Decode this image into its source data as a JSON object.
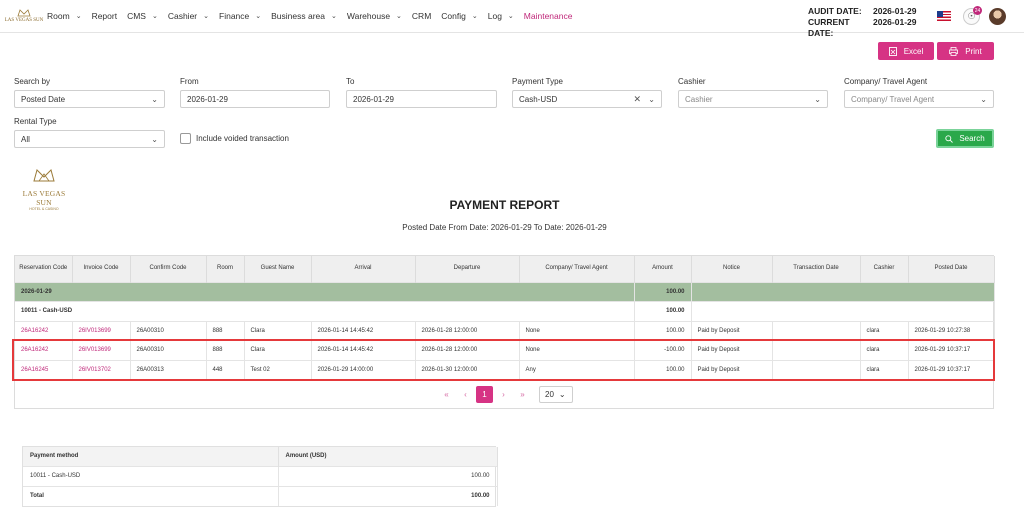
{
  "brand": {
    "logo_text": "LAS VEGAS SUN",
    "logo_sub": "HOTEL & CASINO"
  },
  "nav": [
    {
      "label": "Room",
      "dropdown": true
    },
    {
      "label": "Report",
      "dropdown": false
    },
    {
      "label": "CMS",
      "dropdown": true
    },
    {
      "label": "Cashier",
      "dropdown": true
    },
    {
      "label": "Finance",
      "dropdown": true
    },
    {
      "label": "Business area",
      "dropdown": true
    },
    {
      "label": "Warehouse",
      "dropdown": true
    },
    {
      "label": "CRM",
      "dropdown": false
    },
    {
      "label": "Config",
      "dropdown": true
    },
    {
      "label": "Log",
      "dropdown": true
    },
    {
      "label": "Maintenance",
      "dropdown": false,
      "active": true
    }
  ],
  "audit": {
    "audit_label": "AUDIT DATE:",
    "audit_value": "2026-01-29",
    "current_label": "CURRENT DATE:",
    "current_value": "2026-01-29"
  },
  "notifications": {
    "count": "24"
  },
  "actions": {
    "excel": "Excel",
    "print": "Print"
  },
  "filters": {
    "search_by": {
      "label": "Search by",
      "value": "Posted Date"
    },
    "from": {
      "label": "From",
      "value": "2026-01-29"
    },
    "to": {
      "label": "To",
      "value": "2026-01-29"
    },
    "payment_type": {
      "label": "Payment Type",
      "value": "Cash-USD"
    },
    "cashier": {
      "label": "Cashier",
      "placeholder": "Cashier"
    },
    "company": {
      "label": "Company/ Travel Agent",
      "placeholder": "Company/ Travel Agent"
    },
    "rental_type": {
      "label": "Rental Type",
      "value": "All"
    },
    "include_voided": {
      "label": "Include voided transaction",
      "checked": false
    },
    "search_button": "Search"
  },
  "report": {
    "logo_name": "LAS VEGAS SUN",
    "logo_sub": "HOTEL & CASINO",
    "title": "PAYMENT REPORT",
    "subtitle": "Posted Date  From Date: 2026-01-29    To Date: 2026-01-29"
  },
  "table": {
    "columns": [
      "Reservation Code",
      "Invoice Code",
      "Confirm Code",
      "Room",
      "Guest Name",
      "Arrival",
      "Departure",
      "Company/ Travel Agent",
      "Amount",
      "Notice",
      "Transaction Date",
      "Cashier",
      "Posted Date"
    ],
    "group": {
      "date": "2026-01-29",
      "amount": "100.00"
    },
    "subgroup": {
      "label": "10011 - Cash-USD",
      "amount": "100.00"
    },
    "rows": [
      [
        "26A16242",
        "26IV013699",
        "26A00310",
        "888",
        "Clara",
        "2026-01-14 14:45:42",
        "2026-01-28 12:00:00",
        "None",
        "100.00",
        "Paid by Deposit",
        "",
        "clara",
        "2026-01-29 10:27:38"
      ],
      [
        "26A16242",
        "26IV013699",
        "26A00310",
        "888",
        "Clara",
        "2026-01-14 14:45:42",
        "2026-01-28 12:00:00",
        "None",
        "-100.00",
        "Paid by Deposit",
        "",
        "clara",
        "2026-01-29 10:37:17"
      ],
      [
        "26A16245",
        "26IV013702",
        "26A00313",
        "448",
        "Test 02",
        "2026-01-29 14:00:00",
        "2026-01-30 12:00:00",
        "Any",
        "100.00",
        "Paid by Deposit",
        "",
        "clara",
        "2026-01-29 10:37:17"
      ]
    ]
  },
  "pagination": {
    "first": "«",
    "prev": "‹",
    "current": "1",
    "next": "›",
    "last": "»",
    "page_size": "20"
  },
  "summary": {
    "columns": [
      "Payment method",
      "Amount (USD)"
    ],
    "rows": [
      [
        "10011 - Cash-USD",
        "100.00"
      ]
    ],
    "total": [
      "Total",
      "100.00"
    ]
  },
  "colors": {
    "accent": "#d63384",
    "success": "#2aa84a",
    "group_row": "#a3be9f",
    "highlight": "#e5393b"
  }
}
